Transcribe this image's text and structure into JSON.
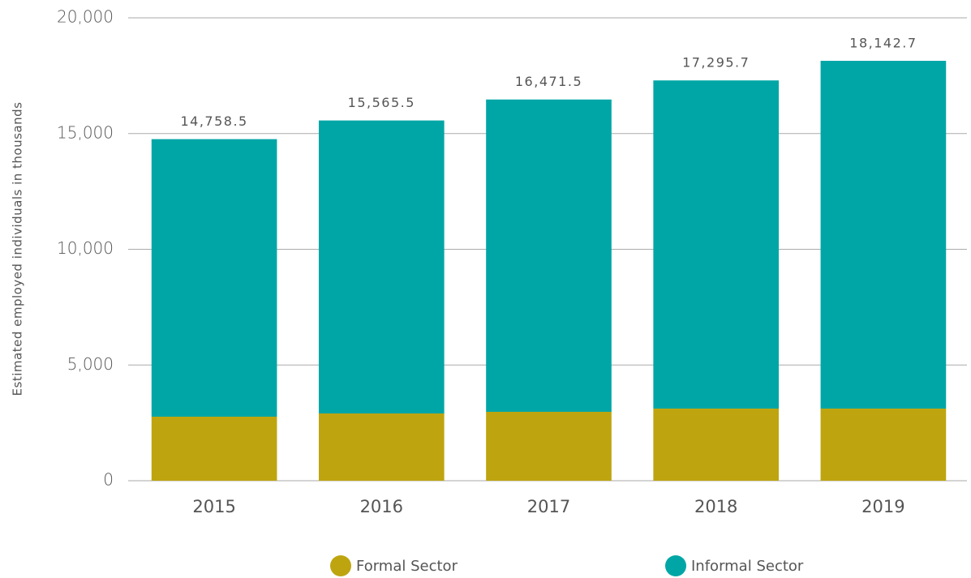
{
  "chart_data": {
    "type": "stacked_bar",
    "y_axis_label": "Estimated employed individuals in thousands",
    "categories": [
      "2015",
      "2016",
      "2017",
      "2018",
      "2019"
    ],
    "series": [
      {
        "name": "Formal Sector",
        "color": "#bea510",
        "values": [
          2767,
          2907,
          2977,
          3117,
          3117
        ]
      },
      {
        "name": "Informal Sector",
        "color": "#00a6a6",
        "values": [
          11991.5,
          12658.5,
          13494.5,
          14178.7,
          15025.7
        ]
      }
    ],
    "totals": [
      14758.5,
      15565.5,
      16471.5,
      17295.7,
      18142.7
    ],
    "total_labels": [
      "14,758.5",
      "15,565.5",
      "16,471.5",
      "17,295.7",
      "18,142.7"
    ],
    "ylim": [
      0,
      20000
    ],
    "yticks": [
      0,
      {
        "value": 5000,
        "label": "5,000"
      },
      {
        "value": 10000,
        "label": "10,000"
      },
      {
        "value": 15000,
        "label": "15,000"
      },
      {
        "value": 20000,
        "label": "20,000"
      }
    ],
    "grid": true
  }
}
